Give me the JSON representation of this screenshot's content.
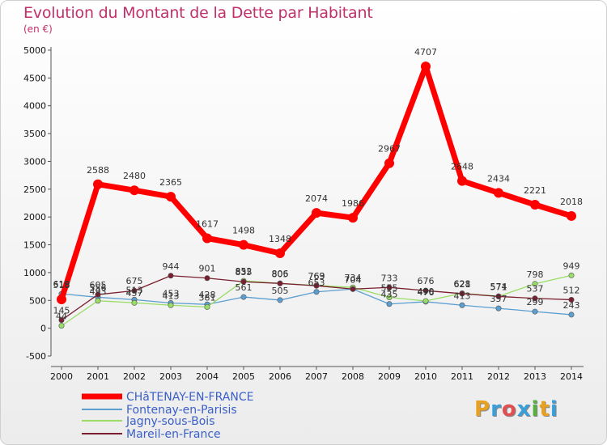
{
  "title": "Evolution du Montant de la Dette par Habitant",
  "unit": "(en €)",
  "brand": "Proxiti",
  "colors": {
    "title": "#c0306a",
    "s1": "#ff0000",
    "s2": "#5b9fd1",
    "s3": "#99dd66",
    "s4": "#7a1f2f"
  },
  "chart_data": {
    "type": "line",
    "title": "Evolution du Montant de la Dette par Habitant",
    "ylabel": "(en €)",
    "x": [
      "2000",
      "2001",
      "2002",
      "2003",
      "2004",
      "2005",
      "2006",
      "2007",
      "2008",
      "2009",
      "2010",
      "2011",
      "2012",
      "2013",
      "2014"
    ],
    "ylim": [
      -500,
      5000
    ],
    "yticks": [
      -500,
      0,
      500,
      1000,
      1500,
      2000,
      2500,
      3000,
      3500,
      4000,
      4500,
      5000
    ],
    "legend_position": "bottom-left",
    "grid": false,
    "series": [
      {
        "name": "CHâTENAY-EN-FRANCE",
        "values": [
          518,
          2588,
          2480,
          2365,
          1617,
          1498,
          1348,
          2074,
          1986,
          2967,
          4707,
          2648,
          2434,
          2221,
          2018
        ],
        "labels": [
          "518",
          "2588",
          "2480",
          "2365",
          "1617",
          "1498",
          "1348",
          "2074",
          "1986",
          "2967",
          "4707",
          "2648",
          "2434",
          "2221",
          "2018"
        ]
      },
      {
        "name": "Fontenay-en-Parisis",
        "values": [
          618,
          556,
          513,
          453,
          428,
          561,
          505,
          653,
          704,
          435,
          476,
          413,
          357,
          299,
          243
        ],
        "labels": [
          "618",
          "556",
          "513",
          "453",
          "428",
          "561",
          "505",
          "653",
          "704",
          "435",
          "476",
          "413",
          "357",
          "299",
          "243"
        ]
      },
      {
        "name": "Jagny-sous-Bois",
        "values": [
          44,
          493,
          457,
          413,
          381,
          852,
          806,
          769,
          734,
          555,
          490,
          628,
          574,
          798,
          949
        ],
        "labels": [
          "44",
          "493",
          "457",
          "413",
          "381",
          "852",
          "806",
          "769",
          "734",
          "555",
          "490",
          "628",
          "574",
          "798",
          "949"
        ]
      },
      {
        "name": "Mareil-en-France",
        "values": [
          145,
          605,
          675,
          944,
          901,
          835,
          805,
          763,
          704,
          733,
          676,
          621,
          571,
          537,
          512
        ],
        "labels": [
          "145",
          "605",
          "675",
          "944",
          "901",
          "835",
          "805",
          "763",
          "704",
          "733",
          "676",
          "621",
          "571",
          "537",
          "512"
        ]
      }
    ]
  }
}
